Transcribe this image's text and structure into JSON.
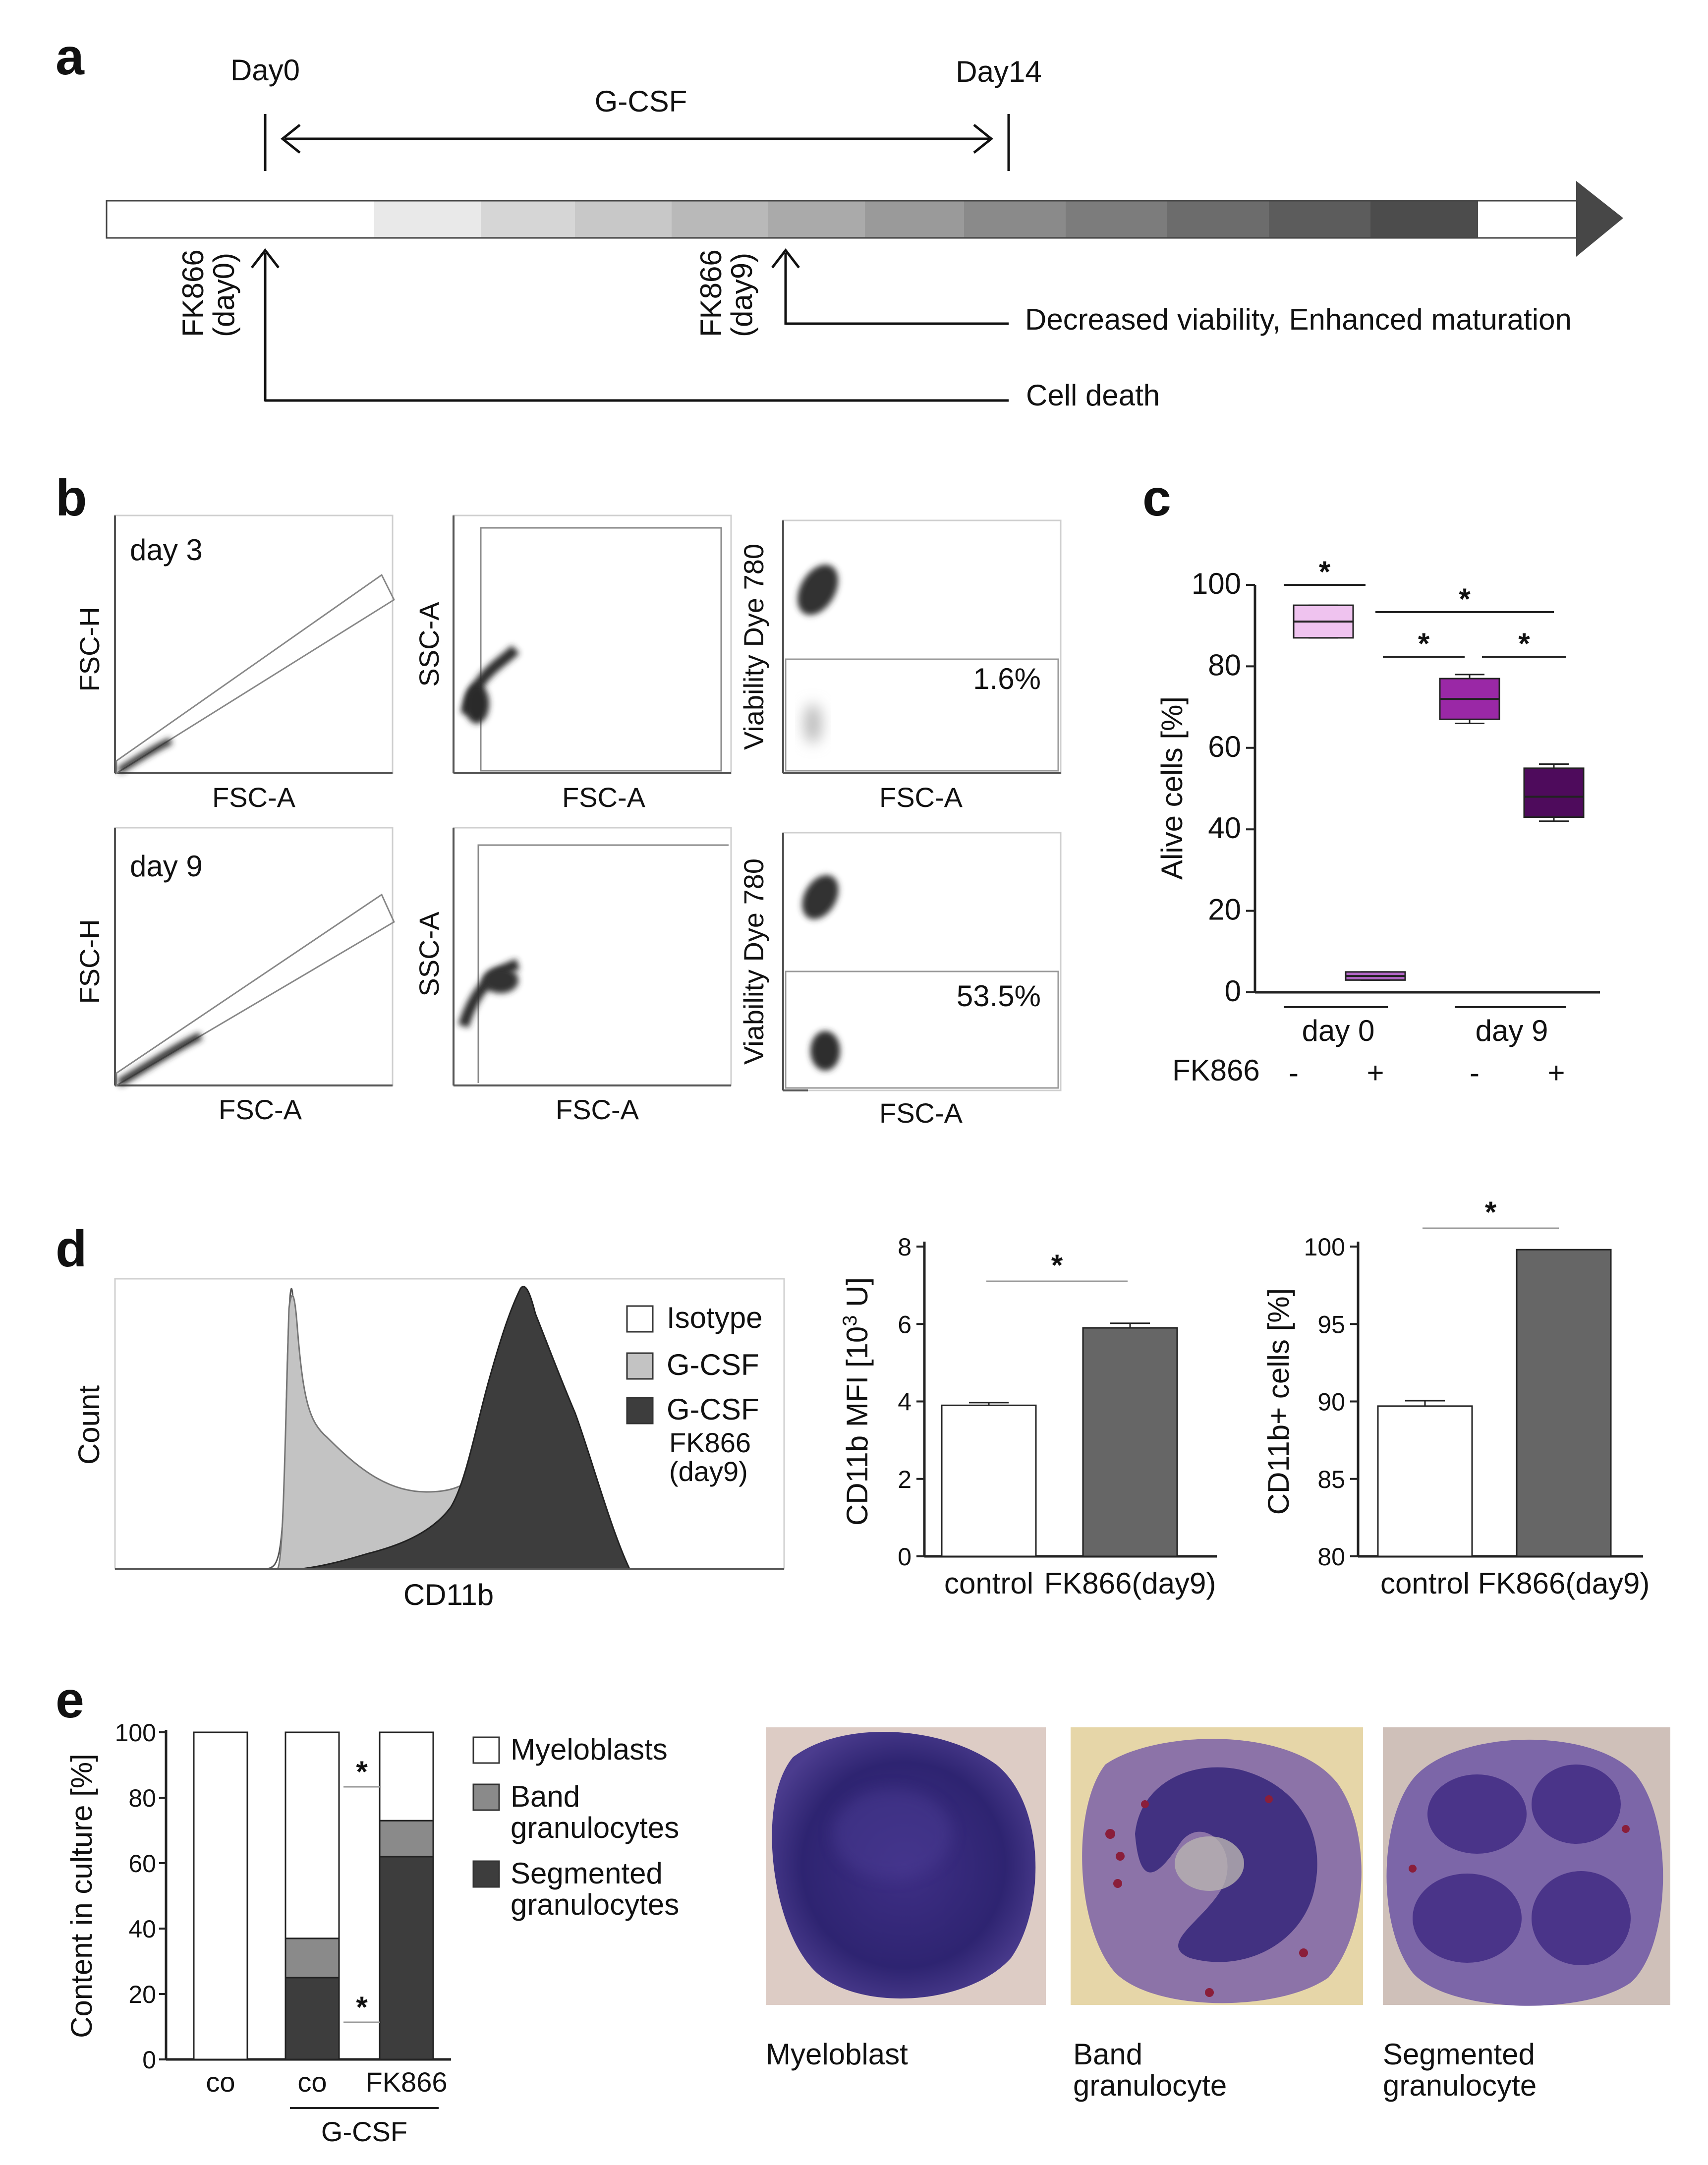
{
  "panels": [
    "a",
    "b",
    "c",
    "d",
    "e"
  ],
  "panel_a": {
    "start": "Day0",
    "end": "Day14",
    "treatment": "G-CSF",
    "fk_day0": [
      "FK866",
      "(day0)"
    ],
    "fk_day9": [
      "FK866",
      "(day9)"
    ],
    "outcome_day9": "Decreased viability, Enhanced maturation",
    "outcome_day0": "Cell death",
    "gradient_colors": [
      "#ffffff",
      "#e9e9e9",
      "#d6d6d6",
      "#c8c8c8",
      "#b9b9b9",
      "#aaaaaa",
      "#9a9a9a",
      "#8a8a8a",
      "#7c7c7c",
      "#6c6c6c",
      "#5c5c5c",
      "#4c4c4c"
    ]
  },
  "panel_b": {
    "rows": [
      {
        "day": "day 3",
        "percent": "1.6%"
      },
      {
        "day": "day 9",
        "percent": "53.5%"
      }
    ],
    "x_label": "FSC-A",
    "y_labels": [
      "FSC-H",
      "SSC-A",
      "Viability Dye 780"
    ]
  },
  "panel_c": {
    "chart_data": {
      "type": "box",
      "ylabel": "Alive cells [%]",
      "ylim": [
        0,
        100
      ],
      "yticks": [
        0,
        20,
        40,
        60,
        80,
        100
      ],
      "group_labels": [
        "day 0",
        "day 9"
      ],
      "treatment_label": "FK866",
      "treatment_signs": [
        "-",
        "+",
        "-",
        "+"
      ],
      "boxes": [
        {
          "q1": 87,
          "median": 91,
          "q3": 95,
          "min": 87,
          "max": 95,
          "color": "#efc3ef"
        },
        {
          "q1": 3,
          "median": 4,
          "q3": 5,
          "min": 3,
          "max": 5,
          "color": "#b266c6"
        },
        {
          "q1": 67,
          "median": 72,
          "q3": 77,
          "min": 66,
          "max": 78,
          "color": "#9a28a6"
        },
        {
          "q1": 43,
          "median": 48,
          "q3": 55,
          "min": 42,
          "max": 56,
          "color": "#4e0b5c"
        }
      ],
      "significance": "*"
    }
  },
  "panel_d": {
    "histogram": {
      "x_label": "CD11b",
      "y_label": "Count",
      "legend": [
        {
          "label": "Isotype",
          "color": "#ffffff"
        },
        {
          "label": "G-CSF",
          "color": "#c3c3c3"
        },
        {
          "label": "G-CSF",
          "sub": [
            "FK866",
            "(day9)"
          ],
          "color": "#3d3d3d"
        }
      ]
    },
    "chart_data": [
      {
        "type": "bar",
        "categories": [
          "control",
          "FK866(day9)"
        ],
        "values": [
          3.9,
          5.9
        ],
        "errors": [
          0.07,
          0.12
        ],
        "ylabel_main": "CD11b MFI [10",
        "ylabel_sup": "3",
        "ylabel_tail": " U]",
        "ylim": [
          0,
          8
        ],
        "yticks": [
          0,
          2,
          4,
          6,
          8
        ],
        "colors": [
          "#ffffff",
          "#666666"
        ],
        "significance": "*"
      },
      {
        "type": "bar",
        "categories": [
          "control",
          "FK866(day9)"
        ],
        "values": [
          89.7,
          99.8
        ],
        "errors": [
          0.35,
          0
        ],
        "ylabel": "CD11b+ cells [%]",
        "ylim": [
          80,
          100
        ],
        "yticks": [
          80,
          85,
          90,
          95,
          100
        ],
        "colors": [
          "#ffffff",
          "#666666"
        ],
        "significance": "*"
      }
    ]
  },
  "panel_e": {
    "chart_data": {
      "type": "bar",
      "stacked": true,
      "ylabel": "Content in culture [%]",
      "ylim": [
        0,
        100
      ],
      "yticks": [
        0,
        20,
        40,
        60,
        80,
        100
      ],
      "categories": [
        "co",
        "co",
        "FK866"
      ],
      "group_label": "G-CSF",
      "series": [
        {
          "name": "Segmented granulocytes",
          "name_lines": [
            "Segmented",
            "granulocytes"
          ],
          "color": "#3d3d3d",
          "values": [
            0,
            25,
            62
          ]
        },
        {
          "name": "Band granulocytes",
          "name_lines": [
            "Band",
            "granulocytes"
          ],
          "color": "#8a8a8a",
          "values": [
            0,
            12,
            11
          ]
        },
        {
          "name": "Myeloblasts",
          "name_lines": [
            "Myeloblasts"
          ],
          "color": "#ffffff",
          "values": [
            100,
            63,
            27
          ]
        }
      ],
      "significance": "*"
    },
    "micrographs": [
      {
        "caption_lines": [
          "Myeloblast"
        ]
      },
      {
        "caption_lines": [
          "Band",
          "granulocyte"
        ]
      },
      {
        "caption_lines": [
          "Segmented",
          "granulocyte"
        ]
      }
    ]
  }
}
